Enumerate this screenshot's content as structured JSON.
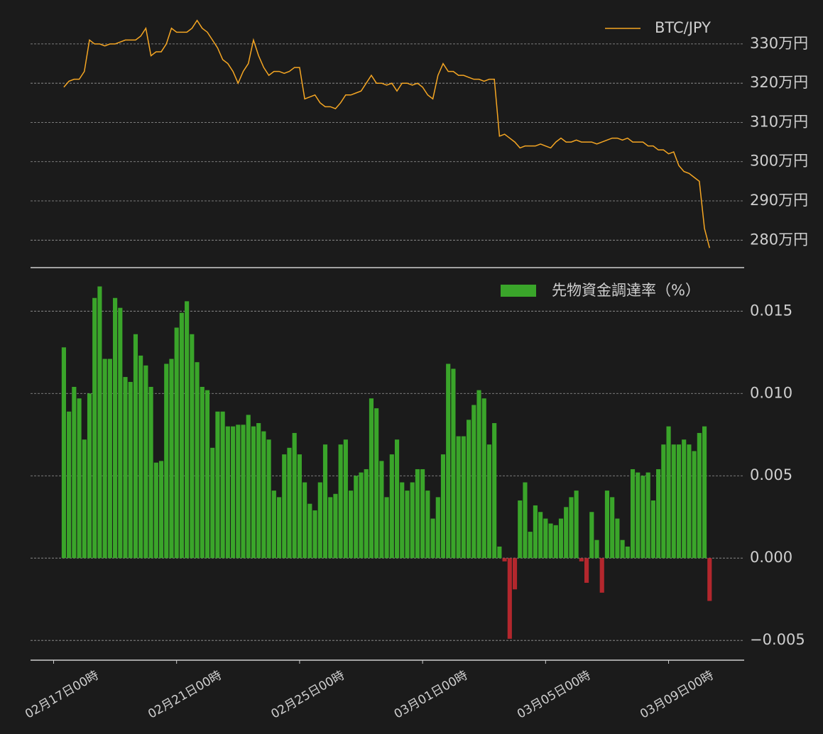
{
  "chart_data": [
    {
      "type": "line",
      "series": [
        {
          "name": "BTC/JPY",
          "color": "#f5a623",
          "x": [
            8,
            12,
            16,
            20,
            24,
            28,
            32,
            36,
            40,
            44,
            48,
            52,
            56,
            60,
            64,
            68,
            72,
            76,
            80,
            84,
            88,
            92,
            96,
            100,
            104,
            108,
            112,
            116,
            120,
            124,
            128,
            132,
            136,
            140,
            144,
            148,
            152,
            156,
            160,
            164,
            168,
            172,
            176,
            180,
            184,
            188,
            192,
            196,
            200,
            204,
            208,
            212,
            216,
            220,
            224,
            228,
            232,
            236,
            240,
            244,
            248,
            252,
            256,
            260,
            264,
            268,
            272,
            276,
            280,
            284,
            288,
            292,
            296,
            300,
            304,
            308,
            312,
            316,
            320,
            324,
            328,
            332,
            336,
            340,
            344,
            348,
            352,
            356,
            360,
            364,
            368,
            372,
            376,
            380,
            384,
            388,
            392,
            396,
            400,
            404,
            408,
            412,
            416,
            420,
            424,
            428,
            432,
            436,
            440,
            444,
            448,
            452,
            456,
            460,
            464,
            468,
            472,
            476,
            480,
            484,
            488,
            492,
            496,
            500,
            504,
            508,
            512
          ],
          "values": [
            319,
            320.5,
            321,
            321,
            323,
            331,
            330,
            330,
            329.5,
            330,
            330,
            330.5,
            331,
            331,
            331,
            332,
            334,
            327,
            328,
            328,
            330,
            334,
            333,
            333,
            333,
            334,
            336,
            334,
            333,
            331,
            329,
            326,
            325,
            323,
            320,
            323,
            325,
            331,
            327,
            324,
            322,
            323,
            323,
            322.5,
            323,
            324,
            324,
            316,
            316.5,
            317,
            315,
            314,
            314,
            313.5,
            315,
            317,
            317,
            317.5,
            318,
            320,
            322,
            320,
            320,
            319.5,
            320,
            318,
            320,
            320,
            319.5,
            320,
            319,
            317,
            316,
            322,
            325,
            323,
            323,
            322,
            322,
            321.5,
            321,
            321,
            320.5,
            321,
            321,
            306.5,
            307,
            306,
            305,
            303.5,
            304,
            304,
            304,
            304.5,
            304,
            303.5,
            305,
            306,
            305,
            305,
            305.5,
            305,
            305,
            305,
            304.5,
            305,
            305.5,
            306,
            306,
            305.5,
            306,
            305,
            305,
            305,
            304,
            304,
            303,
            303,
            302,
            302.5,
            299,
            297.5,
            297,
            296,
            295,
            283,
            278
          ]
        }
      ],
      "xlim": [
        -18,
        539
      ],
      "ylim": [
        273,
        341.2
      ],
      "yticks": [
        {
          "value": 280,
          "label": "280万円"
        },
        {
          "value": 290,
          "label": "290万円"
        },
        {
          "value": 300,
          "label": "300万円"
        },
        {
          "value": 310,
          "label": "310万円"
        },
        {
          "value": 320,
          "label": "320万円"
        },
        {
          "value": 330,
          "label": "330万円"
        }
      ],
      "grid": true,
      "legend": "upper right"
    },
    {
      "type": "bar",
      "series": [
        {
          "name": "先物資金調達率（%）",
          "color": "#3aa52a",
          "negative_color": "#b3272d",
          "x": [
            8,
            12,
            16,
            20,
            24,
            28,
            32,
            36,
            40,
            44,
            48,
            52,
            56,
            60,
            64,
            68,
            72,
            76,
            80,
            84,
            88,
            92,
            96,
            100,
            104,
            108,
            112,
            116,
            120,
            124,
            128,
            132,
            136,
            140,
            144,
            148,
            152,
            156,
            160,
            164,
            168,
            172,
            176,
            180,
            184,
            188,
            192,
            196,
            200,
            204,
            208,
            212,
            216,
            220,
            224,
            228,
            232,
            236,
            240,
            244,
            248,
            252,
            256,
            260,
            264,
            268,
            272,
            276,
            280,
            284,
            288,
            292,
            296,
            300,
            304,
            308,
            312,
            316,
            320,
            324,
            328,
            332,
            336,
            340,
            344,
            348,
            352,
            356,
            360,
            364,
            368,
            372,
            376,
            380,
            384,
            388,
            392,
            396,
            400,
            404,
            408,
            412,
            416,
            420,
            424,
            428,
            432,
            436,
            440,
            444,
            448,
            452,
            456,
            460,
            464,
            468,
            472,
            476,
            480,
            484,
            488,
            492,
            496,
            500,
            504,
            508,
            512
          ],
          "values": [
            0.0128,
            0.0089,
            0.0104,
            0.0097,
            0.0072,
            0.01,
            0.0158,
            0.0165,
            0.0121,
            0.0121,
            0.0158,
            0.0152,
            0.011,
            0.0107,
            0.0136,
            0.0123,
            0.0117,
            0.0104,
            0.0058,
            0.0059,
            0.0118,
            0.0121,
            0.014,
            0.0149,
            0.0156,
            0.0136,
            0.0119,
            0.0104,
            0.0102,
            0.0067,
            0.0089,
            0.0089,
            0.008,
            0.008,
            0.0081,
            0.0081,
            0.0087,
            0.008,
            0.0082,
            0.0077,
            0.0072,
            0.0041,
            0.0037,
            0.0063,
            0.0067,
            0.0076,
            0.0063,
            0.0046,
            0.0033,
            0.0029,
            0.0046,
            0.0069,
            0.0037,
            0.0039,
            0.0069,
            0.0072,
            0.0041,
            0.005,
            0.0052,
            0.0054,
            0.0097,
            0.0091,
            0.0059,
            0.0037,
            0.0063,
            0.0072,
            0.0046,
            0.0041,
            0.0046,
            0.0054,
            0.0054,
            0.0041,
            0.0024,
            0.0037,
            0.0063,
            0.0118,
            0.0115,
            0.0074,
            0.0074,
            0.0084,
            0.0093,
            0.0102,
            0.0097,
            0.0069,
            0.0082,
            0.0007,
            -0.0002,
            -0.0049,
            -0.0019,
            0.0035,
            0.0046,
            0.0016,
            0.0032,
            0.0028,
            0.0024,
            0.0021,
            0.002,
            0.0024,
            0.0031,
            0.0037,
            0.0041,
            -0.0002,
            -0.0015,
            0.0028,
            0.0011,
            -0.0021,
            0.0041,
            0.0037,
            0.0024,
            0.0011,
            0.0007,
            0.0054,
            0.0052,
            0.005,
            0.0052,
            0.0035,
            0.0054,
            0.0069,
            0.008,
            0.0069,
            0.0069,
            0.0072,
            0.0069,
            0.0065,
            0.0076,
            0.008,
            -0.0026
          ]
        }
      ],
      "xlim": [
        -18,
        539
      ],
      "xticks": [
        {
          "value": 0,
          "label": "02月17日00時"
        },
        {
          "value": 96,
          "label": "02月21日00時"
        },
        {
          "value": 192,
          "label": "02月25日00時"
        },
        {
          "value": 288,
          "label": "03月01日00時"
        },
        {
          "value": 384,
          "label": "03月05日00時"
        },
        {
          "value": 480,
          "label": "03月09日00時"
        }
      ],
      "ylim": [
        -0.0062,
        0.0176
      ],
      "yticks": [
        {
          "value": -0.005,
          "label": "−0.005"
        },
        {
          "value": 0,
          "label": "0.000"
        },
        {
          "value": 0.005,
          "label": "0.005"
        },
        {
          "value": 0.01,
          "label": "0.010"
        },
        {
          "value": 0.015,
          "label": "0.015"
        }
      ],
      "grid": true,
      "legend": "upper right"
    }
  ]
}
